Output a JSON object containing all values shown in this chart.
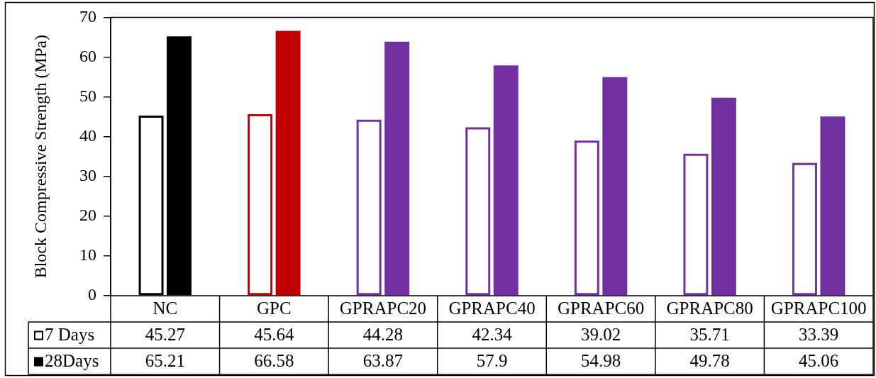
{
  "chart_data": {
    "type": "bar",
    "ylabel": "Block Compressive Strength (MPa)",
    "categories": [
      "NC",
      "GPC",
      "GPRAPC20",
      "GPRAPC40",
      "GPRAPC60",
      "GPRAPC80",
      "GPRAPC100"
    ],
    "series": [
      {
        "name": "7 Days",
        "color": "#000000",
        "colors": [
          "#000000",
          "#c00000",
          "#7030a0",
          "#7030a0",
          "#7030a0",
          "#7030a0",
          "#7030a0"
        ],
        "values": [
          45.27,
          45.64,
          44.28,
          42.34,
          39.02,
          35.71,
          33.39
        ]
      },
      {
        "name": "28Days",
        "color": "#000000",
        "colors": [
          "#000000",
          "#c00000",
          "#7030a0",
          "#7030a0",
          "#7030a0",
          "#7030a0",
          "#7030a0"
        ],
        "values": [
          65.21,
          66.58,
          63.87,
          57.9,
          54.98,
          49.78,
          45.06
        ]
      }
    ],
    "ylim": [
      0,
      70
    ],
    "yticks": [
      0,
      10,
      20,
      30,
      40,
      50,
      60,
      70
    ],
    "data_labels": true,
    "legend": "bottom left"
  }
}
